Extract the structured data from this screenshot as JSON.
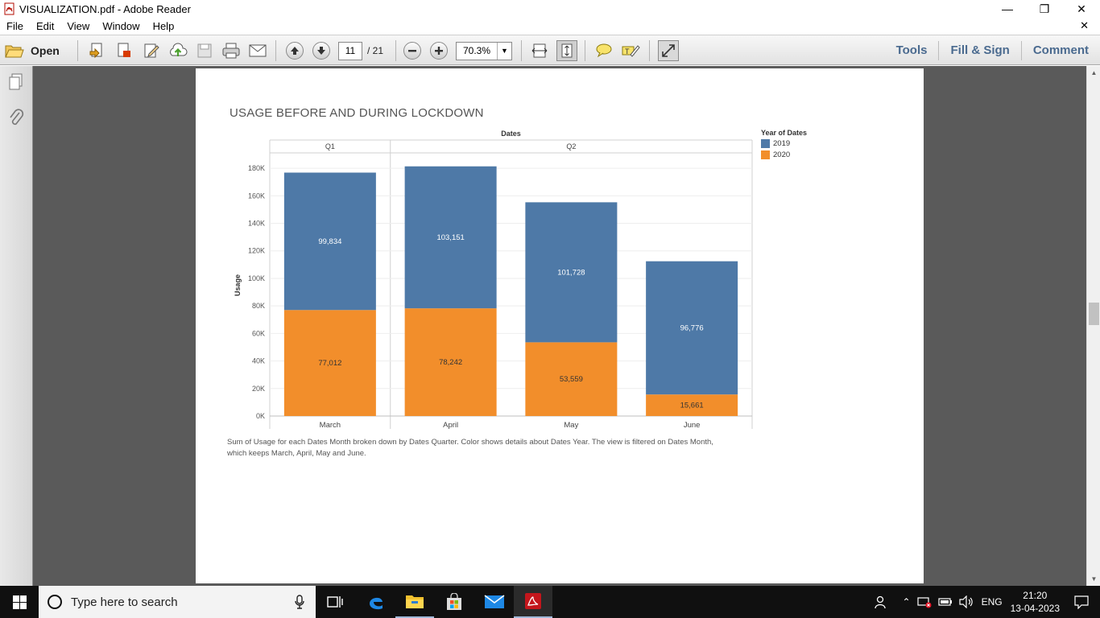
{
  "window": {
    "title": "VISUALIZATION.pdf - Adobe Reader"
  },
  "menu": {
    "items": [
      "File",
      "Edit",
      "View",
      "Window",
      "Help"
    ]
  },
  "toolbar": {
    "open_label": "Open",
    "page_current": "11",
    "page_total": "/ 21",
    "zoom": "70.3%",
    "right_links": [
      "Tools",
      "Fill & Sign",
      "Comment"
    ]
  },
  "chart": {
    "heading": "USAGE BEFORE AND DURING LOCKDOWN",
    "header_label": "Dates",
    "caption_line1": "Sum of Usage for each Dates Month broken down by Dates Quarter.  Color shows details about Dates Year. The view is filtered on Dates Month,",
    "caption_line2": "which keeps March, April, May and June.",
    "legend_title": "Year of Dates",
    "legend": [
      {
        "label": "2019",
        "color": "#4e79a7"
      },
      {
        "label": "2020",
        "color": "#f28e2b"
      }
    ]
  },
  "chart_data": {
    "type": "bar",
    "stacked": true,
    "title": "USAGE BEFORE AND DURING LOCKDOWN",
    "xlabel": "",
    "ylabel": "Usage",
    "column_header": "Dates",
    "quarters": [
      {
        "label": "Q1",
        "months": [
          "March"
        ]
      },
      {
        "label": "Q2",
        "months": [
          "April",
          "May",
          "June"
        ]
      }
    ],
    "categories": [
      "March",
      "April",
      "May",
      "June"
    ],
    "series": [
      {
        "name": "2020",
        "color": "#f28e2b",
        "values": [
          77012,
          78242,
          53559,
          15661
        ],
        "labels": [
          "77,012",
          "78,242",
          "53,559",
          "15,661"
        ]
      },
      {
        "name": "2019",
        "color": "#4e79a7",
        "values": [
          99834,
          103151,
          101728,
          96776
        ],
        "labels": [
          "99,834",
          "103,151",
          "101,728",
          "96,776"
        ]
      }
    ],
    "yticks": [
      "0K",
      "20K",
      "40K",
      "60K",
      "80K",
      "100K",
      "120K",
      "140K",
      "160K",
      "180K"
    ],
    "ylim": [
      0,
      190000
    ],
    "grid": true,
    "legend_position": "right"
  },
  "taskbar": {
    "search_placeholder": "Type here to search",
    "tray_lang": "ENG",
    "time": "21:20",
    "date": "13-04-2023"
  }
}
